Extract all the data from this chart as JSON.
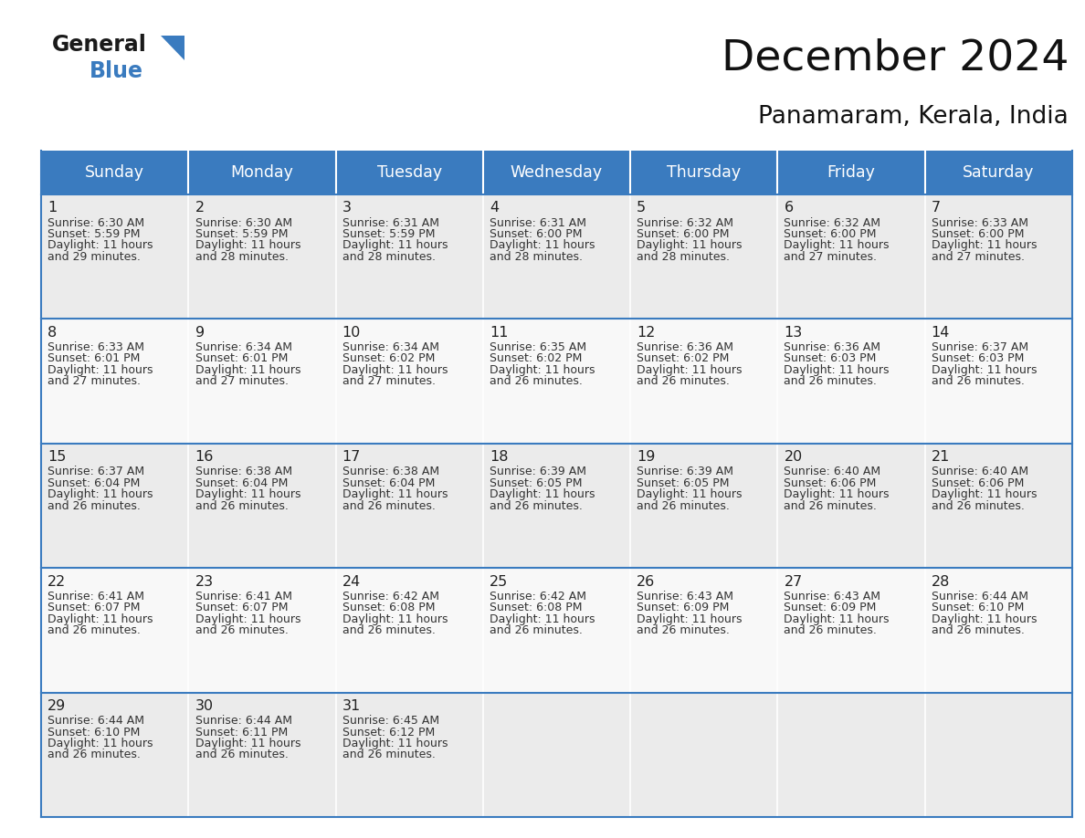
{
  "title": "December 2024",
  "subtitle": "Panamaram, Kerala, India",
  "header_color": "#3a7bbf",
  "header_text_color": "#ffffff",
  "cell_bg_odd": "#ebebeb",
  "cell_bg_even": "#f8f8f8",
  "border_color": "#3a7bbf",
  "text_color": "#333333",
  "day_number_color": "#222222",
  "day_headers": [
    "Sunday",
    "Monday",
    "Tuesday",
    "Wednesday",
    "Thursday",
    "Friday",
    "Saturday"
  ],
  "weeks": [
    [
      {
        "day": 1,
        "sunrise": "6:30 AM",
        "sunset": "5:59 PM",
        "daylight": "11 hours",
        "daylight2": "and 29 minutes."
      },
      {
        "day": 2,
        "sunrise": "6:30 AM",
        "sunset": "5:59 PM",
        "daylight": "11 hours",
        "daylight2": "and 28 minutes."
      },
      {
        "day": 3,
        "sunrise": "6:31 AM",
        "sunset": "5:59 PM",
        "daylight": "11 hours",
        "daylight2": "and 28 minutes."
      },
      {
        "day": 4,
        "sunrise": "6:31 AM",
        "sunset": "6:00 PM",
        "daylight": "11 hours",
        "daylight2": "and 28 minutes."
      },
      {
        "day": 5,
        "sunrise": "6:32 AM",
        "sunset": "6:00 PM",
        "daylight": "11 hours",
        "daylight2": "and 28 minutes."
      },
      {
        "day": 6,
        "sunrise": "6:32 AM",
        "sunset": "6:00 PM",
        "daylight": "11 hours",
        "daylight2": "and 27 minutes."
      },
      {
        "day": 7,
        "sunrise": "6:33 AM",
        "sunset": "6:00 PM",
        "daylight": "11 hours",
        "daylight2": "and 27 minutes."
      }
    ],
    [
      {
        "day": 8,
        "sunrise": "6:33 AM",
        "sunset": "6:01 PM",
        "daylight": "11 hours",
        "daylight2": "and 27 minutes."
      },
      {
        "day": 9,
        "sunrise": "6:34 AM",
        "sunset": "6:01 PM",
        "daylight": "11 hours",
        "daylight2": "and 27 minutes."
      },
      {
        "day": 10,
        "sunrise": "6:34 AM",
        "sunset": "6:02 PM",
        "daylight": "11 hours",
        "daylight2": "and 27 minutes."
      },
      {
        "day": 11,
        "sunrise": "6:35 AM",
        "sunset": "6:02 PM",
        "daylight": "11 hours",
        "daylight2": "and 26 minutes."
      },
      {
        "day": 12,
        "sunrise": "6:36 AM",
        "sunset": "6:02 PM",
        "daylight": "11 hours",
        "daylight2": "and 26 minutes."
      },
      {
        "day": 13,
        "sunrise": "6:36 AM",
        "sunset": "6:03 PM",
        "daylight": "11 hours",
        "daylight2": "and 26 minutes."
      },
      {
        "day": 14,
        "sunrise": "6:37 AM",
        "sunset": "6:03 PM",
        "daylight": "11 hours",
        "daylight2": "and 26 minutes."
      }
    ],
    [
      {
        "day": 15,
        "sunrise": "6:37 AM",
        "sunset": "6:04 PM",
        "daylight": "11 hours",
        "daylight2": "and 26 minutes."
      },
      {
        "day": 16,
        "sunrise": "6:38 AM",
        "sunset": "6:04 PM",
        "daylight": "11 hours",
        "daylight2": "and 26 minutes."
      },
      {
        "day": 17,
        "sunrise": "6:38 AM",
        "sunset": "6:04 PM",
        "daylight": "11 hours",
        "daylight2": "and 26 minutes."
      },
      {
        "day": 18,
        "sunrise": "6:39 AM",
        "sunset": "6:05 PM",
        "daylight": "11 hours",
        "daylight2": "and 26 minutes."
      },
      {
        "day": 19,
        "sunrise": "6:39 AM",
        "sunset": "6:05 PM",
        "daylight": "11 hours",
        "daylight2": "and 26 minutes."
      },
      {
        "day": 20,
        "sunrise": "6:40 AM",
        "sunset": "6:06 PM",
        "daylight": "11 hours",
        "daylight2": "and 26 minutes."
      },
      {
        "day": 21,
        "sunrise": "6:40 AM",
        "sunset": "6:06 PM",
        "daylight": "11 hours",
        "daylight2": "and 26 minutes."
      }
    ],
    [
      {
        "day": 22,
        "sunrise": "6:41 AM",
        "sunset": "6:07 PM",
        "daylight": "11 hours",
        "daylight2": "and 26 minutes."
      },
      {
        "day": 23,
        "sunrise": "6:41 AM",
        "sunset": "6:07 PM",
        "daylight": "11 hours",
        "daylight2": "and 26 minutes."
      },
      {
        "day": 24,
        "sunrise": "6:42 AM",
        "sunset": "6:08 PM",
        "daylight": "11 hours",
        "daylight2": "and 26 minutes."
      },
      {
        "day": 25,
        "sunrise": "6:42 AM",
        "sunset": "6:08 PM",
        "daylight": "11 hours",
        "daylight2": "and 26 minutes."
      },
      {
        "day": 26,
        "sunrise": "6:43 AM",
        "sunset": "6:09 PM",
        "daylight": "11 hours",
        "daylight2": "and 26 minutes."
      },
      {
        "day": 27,
        "sunrise": "6:43 AM",
        "sunset": "6:09 PM",
        "daylight": "11 hours",
        "daylight2": "and 26 minutes."
      },
      {
        "day": 28,
        "sunrise": "6:44 AM",
        "sunset": "6:10 PM",
        "daylight": "11 hours",
        "daylight2": "and 26 minutes."
      }
    ],
    [
      {
        "day": 29,
        "sunrise": "6:44 AM",
        "sunset": "6:10 PM",
        "daylight": "11 hours",
        "daylight2": "and 26 minutes."
      },
      {
        "day": 30,
        "sunrise": "6:44 AM",
        "sunset": "6:11 PM",
        "daylight": "11 hours",
        "daylight2": "and 26 minutes."
      },
      {
        "day": 31,
        "sunrise": "6:45 AM",
        "sunset": "6:12 PM",
        "daylight": "11 hours",
        "daylight2": "and 26 minutes."
      },
      null,
      null,
      null,
      null
    ]
  ]
}
